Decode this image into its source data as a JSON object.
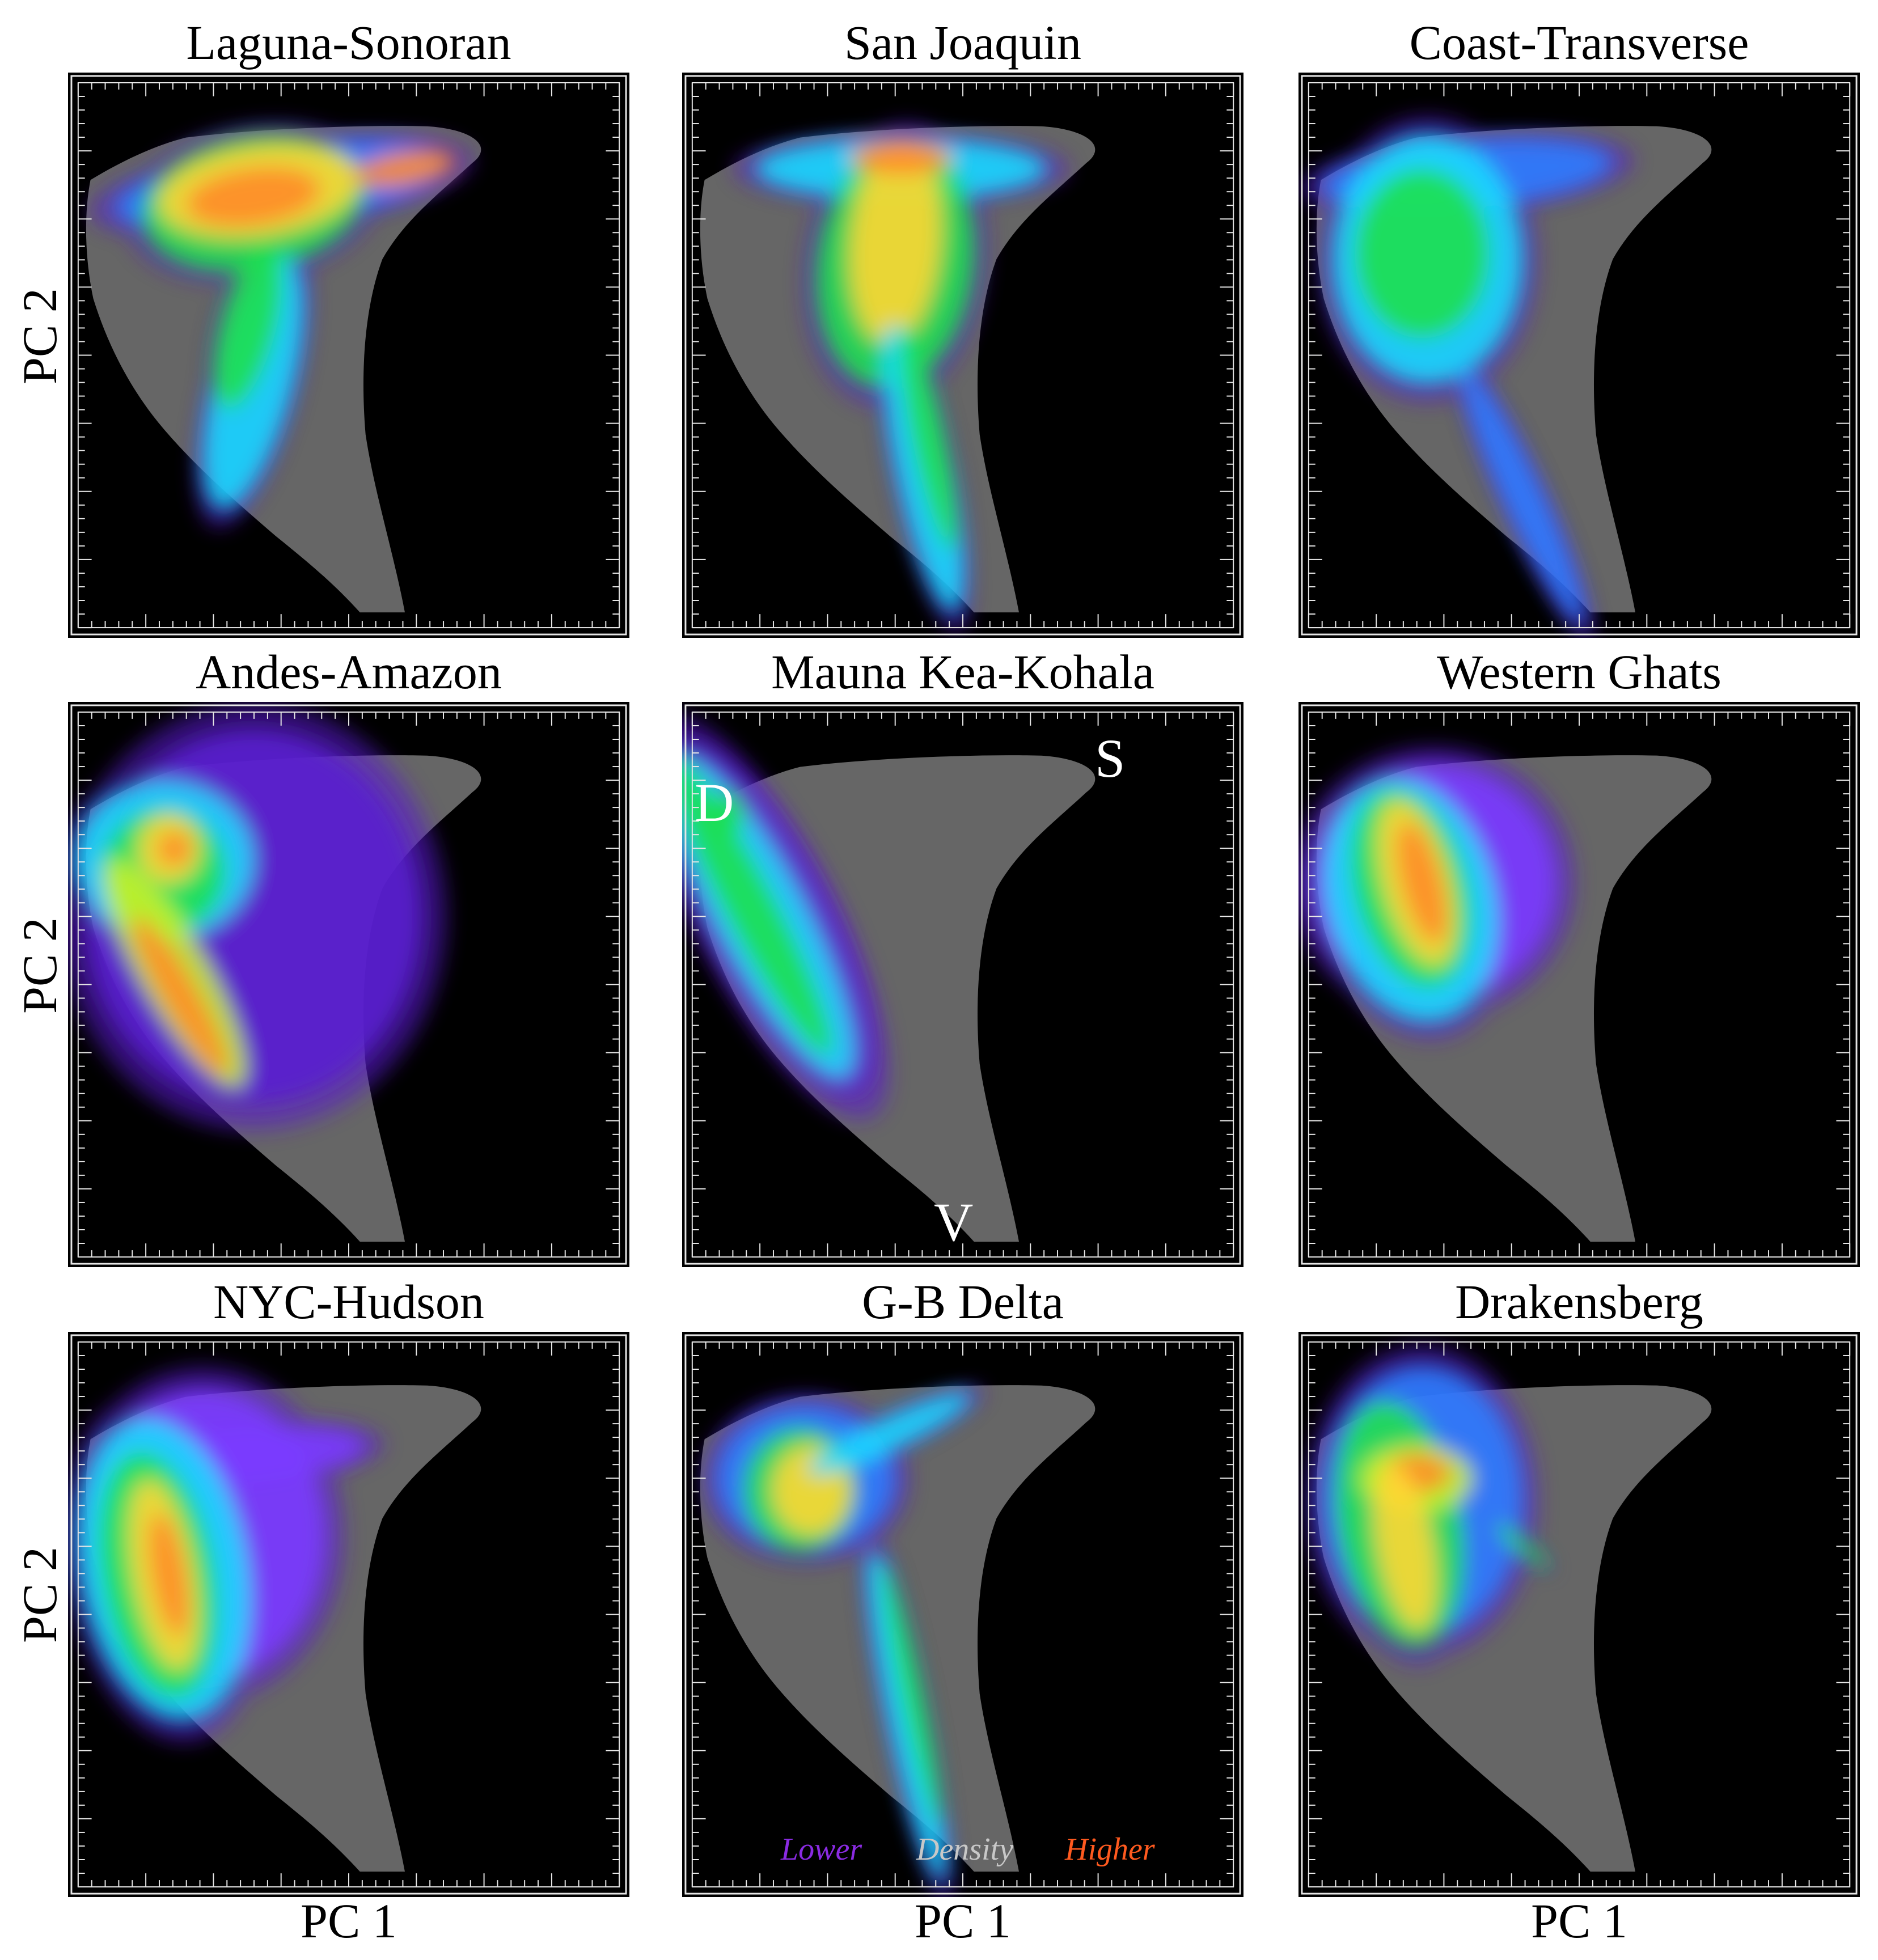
{
  "colors": {
    "background": "#000000",
    "frame": "#e6e6e6",
    "reference_cloud": "#666666",
    "density_ramp": [
      "#5a1fcf",
      "#7a3cff",
      "#2f7dff",
      "#19d9ff",
      "#1ee04f",
      "#c8f02a",
      "#ffd733",
      "#ff8c2b",
      "#e8481f"
    ]
  },
  "axis_labels": {
    "x": "PC 1",
    "y": "PC 2"
  },
  "legend": {
    "low": "Lower",
    "mid": "Density",
    "high": "Higher"
  },
  "chart_data": [
    {
      "type": "heatmap",
      "title": "Laguna-Sonoran",
      "xlabel": "",
      "ylabel": "PC 2",
      "grid": false,
      "density_peak": "upper-center ridge"
    },
    {
      "type": "heatmap",
      "title": "San Joaquin",
      "xlabel": "",
      "ylabel": "",
      "grid": false,
      "density_peak": "top-center"
    },
    {
      "type": "heatmap",
      "title": "Coast-Transverse",
      "xlabel": "",
      "ylabel": "",
      "grid": false,
      "density_peak": "upper-left"
    },
    {
      "type": "heatmap",
      "title": "Andes-Amazon",
      "xlabel": "",
      "ylabel": "PC 2",
      "grid": false,
      "density_peak": "upper-left"
    },
    {
      "type": "heatmap",
      "title": "Mauna Kea-Kohala",
      "xlabel": "",
      "ylabel": "",
      "grid": false,
      "density_peak": "left edge",
      "annotations": [
        "D",
        "S",
        "V"
      ]
    },
    {
      "type": "heatmap",
      "title": "Western Ghats",
      "xlabel": "",
      "ylabel": "",
      "grid": false,
      "density_peak": "left-center"
    },
    {
      "type": "heatmap",
      "title": "NYC-Hudson",
      "xlabel": "PC 1",
      "ylabel": "PC 2",
      "grid": false,
      "density_peak": "left-center"
    },
    {
      "type": "heatmap",
      "title": "G-B Delta",
      "xlabel": "PC 1",
      "ylabel": "",
      "grid": false,
      "density_peak": "upper-left"
    },
    {
      "type": "heatmap",
      "title": "Drakensberg",
      "xlabel": "PC 1",
      "ylabel": "",
      "grid": false,
      "density_peak": "upper-left"
    }
  ]
}
